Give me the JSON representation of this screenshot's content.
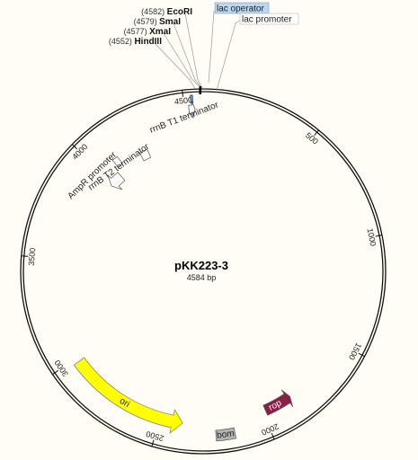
{
  "plasmid": {
    "name": "pKK223-3",
    "length_label": "4584 bp",
    "length": 4584
  },
  "ticks": [
    {
      "pos": 500,
      "label": "500"
    },
    {
      "pos": 1000,
      "label": "1000"
    },
    {
      "pos": 1500,
      "label": "1500"
    },
    {
      "pos": 2000,
      "label": "2000"
    },
    {
      "pos": 2500,
      "label": "2500"
    },
    {
      "pos": 3000,
      "label": "3000"
    },
    {
      "pos": 3500,
      "label": "3500"
    },
    {
      "pos": 4000,
      "label": "4000"
    },
    {
      "pos": 4500,
      "label": "4500"
    }
  ],
  "sites": [
    {
      "name": "EcoRI",
      "pos_label": "(4582)",
      "pos": 4582
    },
    {
      "name": "SmaI",
      "pos_label": "(4579)",
      "pos": 4579
    },
    {
      "name": "XmaI",
      "pos_label": "(4577)",
      "pos": 4577
    },
    {
      "name": "HindIII",
      "pos_label": "(4552)",
      "pos": 4552
    }
  ],
  "features": [
    {
      "name": "lac operator",
      "kind": "box",
      "start": 4530,
      "end": 4540,
      "color": "#5b8fc0",
      "highlight": "#bcd6ee"
    },
    {
      "name": "lac promoter",
      "kind": "arrow",
      "start": 4520,
      "end": 4548,
      "color": "#ffffff"
    },
    {
      "name": "rrnB T1 terminator",
      "kind": "box",
      "start": 4225,
      "end": 4270,
      "color": "#ffffff"
    },
    {
      "name": "rrnB T2 terminator",
      "kind": "box",
      "start": 4085,
      "end": 4115,
      "color": "#ffffff"
    },
    {
      "name": "AmpR promoter",
      "kind": "arrow",
      "start": 3985,
      "end": 4065,
      "color": "#ffffff"
    },
    {
      "name": "ori",
      "kind": "arrow",
      "start": 2390,
      "end": 2980,
      "color": "#ffff00"
    },
    {
      "name": "bom",
      "kind": "box",
      "start": 2150,
      "end": 2235,
      "color": "#b3b3b3"
    },
    {
      "name": "rop",
      "kind": "arrow",
      "start": 1850,
      "end": 1985,
      "color": "#8a1f47"
    }
  ]
}
